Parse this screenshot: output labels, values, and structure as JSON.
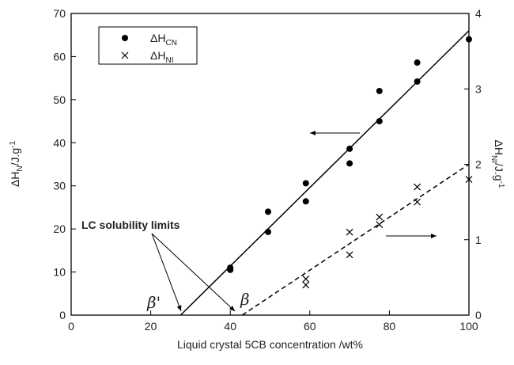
{
  "chart_data": {
    "type": "scatter",
    "xlabel": "Liquid crystal 5CB concentration /wt%",
    "ylabel": [
      "ΔH",
      "N",
      "/J.g",
      "-1"
    ],
    "y2label": [
      "ΔH",
      "NI",
      "/J.g",
      "-1"
    ],
    "xlim": [
      0,
      100
    ],
    "xticks": [
      0,
      20,
      40,
      60,
      80,
      100
    ],
    "ylim": [
      0,
      70
    ],
    "yticks": [
      0,
      10,
      20,
      30,
      40,
      50,
      60,
      70
    ],
    "y2lim": [
      0,
      4
    ],
    "y2ticks": [
      0,
      1,
      2,
      3,
      4
    ],
    "series": [
      {
        "name": "ΔH",
        "name_sub": "CN",
        "marker": "circle",
        "color": "#000000",
        "x": [
          40,
          40,
          49.5,
          49.5,
          59,
          59,
          70,
          70,
          77.5,
          77.5,
          87,
          87,
          100
        ],
        "values": [
          11,
          10.5,
          24,
          19.3,
          30.6,
          26.4,
          38.6,
          35.2,
          52,
          45,
          58.6,
          54.2,
          64
        ]
      },
      {
        "name": "ΔH",
        "name_sub": "NI",
        "marker": "cross",
        "color": "#000000",
        "axis": "y2",
        "x": [
          59,
          59,
          70,
          70,
          77.5,
          77.5,
          87,
          87,
          100
        ],
        "values": [
          0.48,
          0.4,
          1.1,
          0.8,
          1.3,
          1.2,
          1.7,
          1.5,
          1.8
        ]
      }
    ],
    "fits": [
      {
        "dash": false,
        "x": [
          27.5,
          100
        ],
        "values": [
          0,
          66
        ]
      },
      {
        "dash": true,
        "axis": "y2",
        "x": [
          43,
          100
        ],
        "values": [
          0,
          2.0
        ]
      }
    ],
    "annotations": [
      "LC solubility limits",
      "β'",
      "β"
    ]
  }
}
